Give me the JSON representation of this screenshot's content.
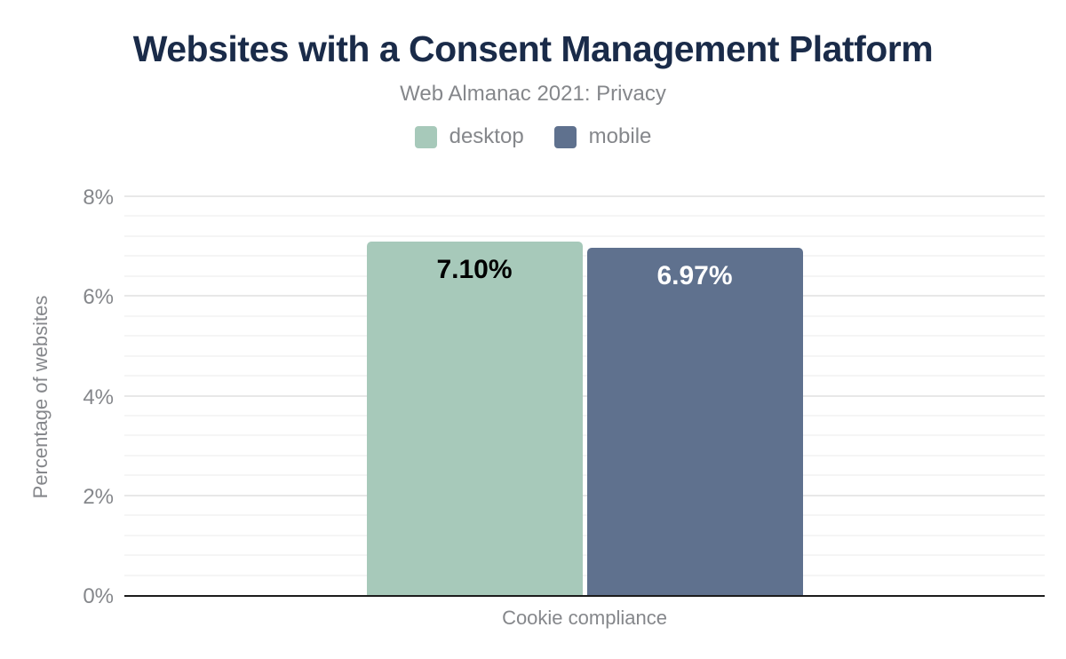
{
  "header": {
    "title": "Websites with a Consent Management Platform",
    "subtitle": "Web Almanac 2021: Privacy"
  },
  "legend": {
    "items": [
      {
        "label": "desktop",
        "color": "#a7c9ba"
      },
      {
        "label": "mobile",
        "color": "#5f718e"
      }
    ]
  },
  "chart_data": {
    "type": "bar",
    "title": "Websites with a Consent Management Platform",
    "subtitle": "Web Almanac 2021: Privacy",
    "categories": [
      "Cookie compliance"
    ],
    "series": [
      {
        "name": "desktop",
        "values": [
          7.1
        ],
        "data_labels": [
          "7.10%"
        ],
        "color": "#a7c9ba",
        "data_label_color": "#000000"
      },
      {
        "name": "mobile",
        "values": [
          6.97
        ],
        "data_labels": [
          "6.97%"
        ],
        "color": "#5f718e",
        "data_label_color": "#ffffff"
      }
    ],
    "xlabel": "",
    "ylabel": "Percentage of websites",
    "ylim": [
      0,
      8
    ],
    "yticks": {
      "values": [
        0,
        2,
        4,
        6,
        8
      ],
      "labels": [
        "0%",
        "2%",
        "4%",
        "6%",
        "8%"
      ]
    },
    "grid": {
      "major_step": 2,
      "minor_step": 0.4,
      "grid_on": true
    },
    "legend_position": "top"
  },
  "colors": {
    "title_text": "#1a2b49",
    "secondary_text": "#85878b",
    "major_gridline": "#e8e8e8",
    "minor_gridline": "#f5f5f5",
    "axis_line": "#1c1c1c"
  }
}
